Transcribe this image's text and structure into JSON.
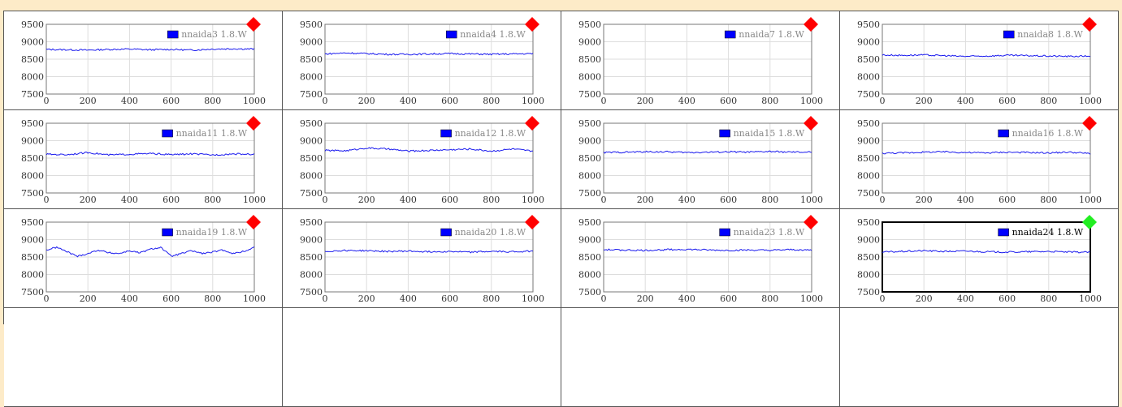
{
  "colors": {
    "series": "#1a1aee",
    "legend_swatch": "#0000ff",
    "status_bad": "#ff0000",
    "status_good": "#22ee22",
    "gridline": "#dddddd"
  },
  "chart_data": [
    {
      "type": "line",
      "legend": "nnaida3 1.8.W",
      "status": "red",
      "selected": false,
      "xlim": [
        0,
        1000
      ],
      "ylim": [
        7500,
        9500
      ],
      "xticks": [
        "0",
        "200",
        "400",
        "600",
        "800",
        "1000"
      ],
      "yticks": [
        "9500",
        "9000",
        "8500",
        "8000",
        "7500"
      ],
      "series": [
        {
          "x": [
            0,
            100,
            200,
            300,
            400,
            500,
            600,
            700,
            800,
            900,
            1000
          ],
          "values": [
            8780,
            8770,
            8760,
            8780,
            8790,
            8770,
            8780,
            8760,
            8790,
            8800,
            8790
          ]
        }
      ]
    },
    {
      "type": "line",
      "legend": "nnaida4 1.8.W",
      "status": "red",
      "selected": false,
      "xlim": [
        0,
        1000
      ],
      "ylim": [
        7500,
        9500
      ],
      "xticks": [
        "0",
        "200",
        "400",
        "600",
        "800",
        "1000"
      ],
      "yticks": [
        "9500",
        "9000",
        "8500",
        "8000",
        "7500"
      ],
      "series": [
        {
          "x": [
            0,
            100,
            200,
            300,
            400,
            500,
            600,
            700,
            800,
            900,
            1000
          ],
          "values": [
            8650,
            8680,
            8660,
            8640,
            8640,
            8650,
            8660,
            8650,
            8640,
            8650,
            8660
          ]
        }
      ]
    },
    {
      "type": "line",
      "legend": "nnaida7 1.8.W",
      "status": "red",
      "selected": false,
      "xlim": [
        0,
        1000
      ],
      "ylim": [
        7500,
        9500
      ],
      "xticks": [
        "0",
        "200",
        "400",
        "600",
        "800",
        "1000"
      ],
      "yticks": [
        "9500",
        "9000",
        "8500",
        "8000",
        "7500"
      ],
      "series": []
    },
    {
      "type": "line",
      "legend": "nnaida8 1.8.W",
      "status": "red",
      "selected": false,
      "xlim": [
        0,
        1000
      ],
      "ylim": [
        7500,
        9500
      ],
      "xticks": [
        "0",
        "200",
        "400",
        "600",
        "800",
        "1000"
      ],
      "yticks": [
        "9500",
        "9000",
        "8500",
        "8000",
        "7500"
      ],
      "series": [
        {
          "x": [
            0,
            100,
            200,
            300,
            400,
            500,
            600,
            700,
            800,
            900,
            1000
          ],
          "values": [
            8620,
            8610,
            8620,
            8600,
            8580,
            8590,
            8610,
            8600,
            8590,
            8580,
            8590
          ]
        }
      ]
    },
    {
      "type": "line",
      "legend": "nnaida11 1.8.W",
      "status": "red",
      "selected": false,
      "xlim": [
        0,
        1000
      ],
      "ylim": [
        7500,
        9500
      ],
      "xticks": [
        "0",
        "200",
        "400",
        "600",
        "800",
        "1000"
      ],
      "yticks": [
        "9500",
        "9000",
        "8500",
        "8000",
        "7500"
      ],
      "series": [
        {
          "x": [
            0,
            100,
            200,
            300,
            400,
            500,
            600,
            700,
            800,
            900,
            1000
          ],
          "values": [
            8610,
            8600,
            8660,
            8590,
            8610,
            8630,
            8600,
            8620,
            8590,
            8620,
            8610
          ]
        }
      ]
    },
    {
      "type": "line",
      "legend": "nnaida12 1.8.W",
      "status": "red",
      "selected": false,
      "xlim": [
        0,
        1000
      ],
      "ylim": [
        7500,
        9500
      ],
      "xticks": [
        "0",
        "200",
        "400",
        "600",
        "800",
        "1000"
      ],
      "yticks": [
        "9500",
        "9000",
        "8500",
        "8000",
        "7500"
      ],
      "series": [
        {
          "x": [
            0,
            100,
            200,
            300,
            400,
            500,
            600,
            700,
            800,
            900,
            1000
          ],
          "values": [
            8720,
            8710,
            8790,
            8760,
            8700,
            8720,
            8740,
            8760,
            8700,
            8760,
            8700
          ]
        }
      ]
    },
    {
      "type": "line",
      "legend": "nnaida15 1.8.W",
      "status": "red",
      "selected": false,
      "xlim": [
        0,
        1000
      ],
      "ylim": [
        7500,
        9500
      ],
      "xticks": [
        "0",
        "200",
        "400",
        "600",
        "800",
        "1000"
      ],
      "yticks": [
        "9500",
        "9000",
        "8500",
        "8000",
        "7500"
      ],
      "series": [
        {
          "x": [
            0,
            100,
            200,
            300,
            400,
            500,
            600,
            700,
            800,
            900,
            1000
          ],
          "values": [
            8660,
            8670,
            8680,
            8680,
            8660,
            8670,
            8680,
            8670,
            8690,
            8670,
            8670
          ]
        }
      ]
    },
    {
      "type": "line",
      "legend": "nnaida16 1.8.W",
      "status": "red",
      "selected": false,
      "xlim": [
        0,
        1000
      ],
      "ylim": [
        7500,
        9500
      ],
      "xticks": [
        "0",
        "200",
        "400",
        "600",
        "800",
        "1000"
      ],
      "yticks": [
        "9500",
        "9000",
        "8500",
        "8000",
        "7500"
      ],
      "series": [
        {
          "x": [
            0,
            100,
            200,
            300,
            400,
            500,
            600,
            700,
            800,
            900,
            1000
          ],
          "values": [
            8640,
            8650,
            8670,
            8680,
            8660,
            8650,
            8670,
            8660,
            8650,
            8670,
            8630
          ]
        }
      ]
    },
    {
      "type": "line",
      "legend": "nnaida19 1.8.W",
      "status": "red",
      "selected": false,
      "xlim": [
        0,
        1000
      ],
      "ylim": [
        7500,
        9500
      ],
      "xticks": [
        "0",
        "200",
        "400",
        "600",
        "800",
        "1000"
      ],
      "yticks": [
        "9500",
        "9000",
        "8500",
        "8000",
        "7500"
      ],
      "series": [
        {
          "x": [
            0,
            50,
            100,
            150,
            200,
            250,
            300,
            350,
            400,
            450,
            500,
            550,
            600,
            650,
            700,
            750,
            800,
            850,
            900,
            950,
            1000
          ],
          "values": [
            8700,
            8780,
            8650,
            8520,
            8600,
            8700,
            8620,
            8600,
            8680,
            8620,
            8720,
            8780,
            8520,
            8600,
            8680,
            8600,
            8640,
            8700,
            8600,
            8660,
            8780
          ]
        }
      ]
    },
    {
      "type": "line",
      "legend": "nnaida20 1.8.W",
      "status": "red",
      "selected": false,
      "xlim": [
        0,
        1000
      ],
      "ylim": [
        7500,
        9500
      ],
      "xticks": [
        "0",
        "200",
        "400",
        "600",
        "800",
        "1000"
      ],
      "yticks": [
        "9500",
        "9000",
        "8500",
        "8000",
        "7500"
      ],
      "series": [
        {
          "x": [
            0,
            100,
            200,
            300,
            400,
            500,
            600,
            700,
            800,
            900,
            1000
          ],
          "values": [
            8660,
            8690,
            8680,
            8660,
            8670,
            8650,
            8660,
            8640,
            8660,
            8650,
            8670
          ]
        }
      ]
    },
    {
      "type": "line",
      "legend": "nnaida23 1.8.W",
      "status": "red",
      "selected": false,
      "xlim": [
        0,
        1000
      ],
      "ylim": [
        7500,
        9500
      ],
      "xticks": [
        "0",
        "200",
        "400",
        "600",
        "800",
        "1000"
      ],
      "yticks": [
        "9500",
        "9000",
        "8500",
        "8000",
        "7500"
      ],
      "series": [
        {
          "x": [
            0,
            100,
            200,
            300,
            400,
            500,
            600,
            700,
            800,
            900,
            1000
          ],
          "values": [
            8710,
            8700,
            8690,
            8710,
            8720,
            8700,
            8690,
            8700,
            8690,
            8710,
            8700
          ]
        }
      ]
    },
    {
      "type": "line",
      "legend": "nnaida24 1.8.W",
      "status": "green",
      "selected": true,
      "xlim": [
        0,
        1000
      ],
      "ylim": [
        7500,
        9500
      ],
      "xticks": [
        "0",
        "200",
        "400",
        "600",
        "800",
        "1000"
      ],
      "yticks": [
        "9500",
        "9000",
        "8500",
        "8000",
        "7500"
      ],
      "series": [
        {
          "x": [
            0,
            100,
            200,
            300,
            400,
            500,
            600,
            700,
            800,
            900,
            1000
          ],
          "values": [
            8640,
            8660,
            8680,
            8660,
            8670,
            8650,
            8640,
            8650,
            8660,
            8640,
            8640
          ]
        }
      ]
    }
  ]
}
